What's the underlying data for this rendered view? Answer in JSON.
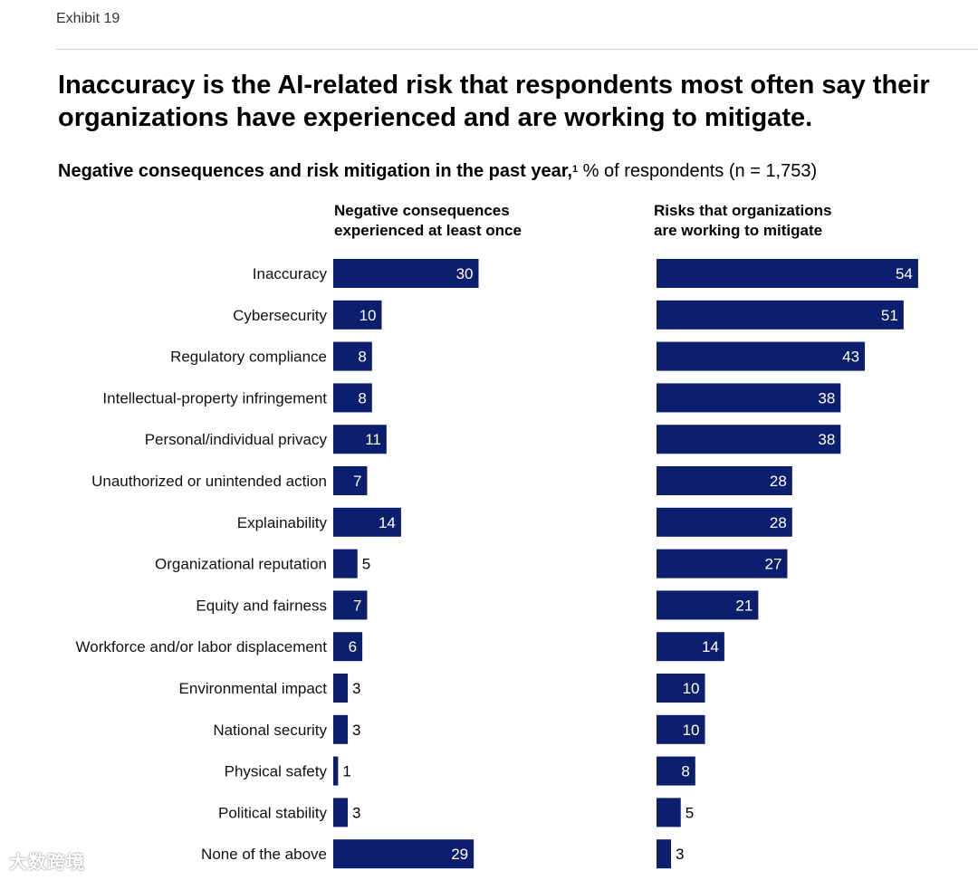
{
  "exhibit": "Exhibit 19",
  "title": "Inaccuracy is the AI-related risk that respondents most often say their organizations have experienced and are working to mitigate.",
  "subtitle": {
    "bold": "Negative consequences and risk mitigation in the past year,",
    "footnote": "1",
    "rest": " % of respondents (n = 1,753)"
  },
  "watermark": "大数跨境",
  "colors": {
    "bar": "#0b1f6e",
    "label_inside": "#ffffff",
    "label_outside": "#000000"
  },
  "chart_data": {
    "type": "bar",
    "orientation": "horizontal",
    "unit": "% of respondents",
    "categories": [
      "Inaccuracy",
      "Cybersecurity",
      "Regulatory compliance",
      "Intellectual-property infringement",
      "Personal/individual privacy",
      "Unauthorized or unintended action",
      "Explainability",
      "Organizational reputation",
      "Equity and fairness",
      "Workforce and/or labor displacement",
      "Environmental impact",
      "National security",
      "Physical safety",
      "Political stability",
      "None of the above"
    ],
    "series": [
      {
        "name": [
          "Negative consequences",
          "experienced at least once"
        ],
        "values": [
          30,
          10,
          8,
          8,
          11,
          7,
          14,
          5,
          7,
          6,
          3,
          3,
          1,
          3,
          29
        ]
      },
      {
        "name": [
          "Risks that organizations",
          "are working to mitigate"
        ],
        "values": [
          54,
          51,
          43,
          38,
          38,
          28,
          28,
          27,
          21,
          14,
          10,
          10,
          8,
          5,
          3
        ]
      }
    ],
    "data_labels": true,
    "grid": false,
    "legend": "column headers above each panel"
  }
}
